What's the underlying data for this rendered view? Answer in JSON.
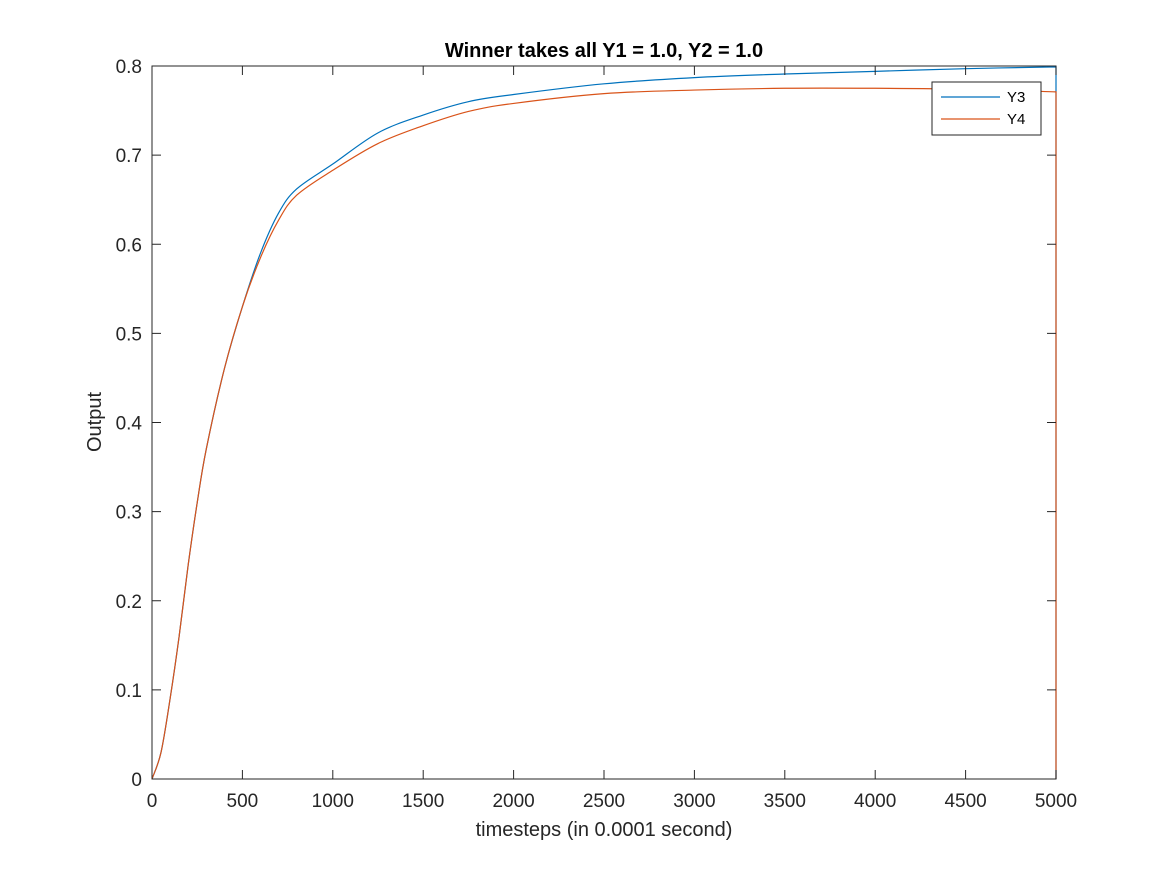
{
  "chart_data": {
    "type": "line",
    "title": "Winner takes all Y1 = 1.0, Y2 = 1.0",
    "xlabel": "timesteps (in 0.0001 second)",
    "ylabel": "Output",
    "xlim": [
      0,
      5000
    ],
    "ylim": [
      0,
      0.8
    ],
    "xticks": [
      0,
      500,
      1000,
      1500,
      2000,
      2500,
      3000,
      3500,
      4000,
      4500,
      5000
    ],
    "xtick_labels": [
      "0",
      "500",
      "1000",
      "1500",
      "2000",
      "2500",
      "3000",
      "3500",
      "4000",
      "4500",
      "5000"
    ],
    "yticks": [
      0,
      0.1,
      0.2,
      0.3,
      0.4,
      0.5,
      0.6,
      0.7,
      0.8
    ],
    "ytick_labels": [
      "0",
      "0.1",
      "0.2",
      "0.3",
      "0.4",
      "0.5",
      "0.6",
      "0.7",
      "0.8"
    ],
    "grid": false,
    "legend_position": "top-right",
    "x": [
      0,
      50,
      100,
      150,
      200,
      250,
      300,
      400,
      500,
      600,
      700,
      800,
      1000,
      1250,
      1500,
      1750,
      2000,
      2500,
      3000,
      3500,
      4000,
      4500,
      5000
    ],
    "series": [
      {
        "name": "Y3",
        "color": "#0072BD",
        "values": [
          0.0,
          0.03,
          0.09,
          0.16,
          0.24,
          0.31,
          0.37,
          0.46,
          0.53,
          0.59,
          0.635,
          0.662,
          0.69,
          0.725,
          0.745,
          0.76,
          0.768,
          0.78,
          0.787,
          0.791,
          0.794,
          0.797,
          0.799
        ]
      },
      {
        "name": "Y4",
        "color": "#D95319",
        "values": [
          0.0,
          0.03,
          0.09,
          0.16,
          0.24,
          0.31,
          0.37,
          0.46,
          0.53,
          0.585,
          0.627,
          0.655,
          0.683,
          0.713,
          0.733,
          0.749,
          0.758,
          0.769,
          0.773,
          0.775,
          0.775,
          0.774,
          0.771
        ]
      }
    ]
  }
}
